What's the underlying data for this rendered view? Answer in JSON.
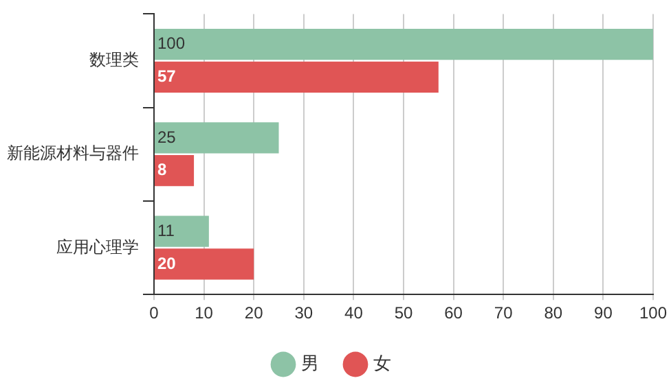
{
  "chart_data": {
    "type": "bar",
    "orientation": "horizontal",
    "categories": [
      "数理类",
      "新能源材料与器件",
      "应用心理学"
    ],
    "series": [
      {
        "name": "男",
        "color": "#8dc3a6",
        "values": [
          100,
          25,
          11
        ]
      },
      {
        "name": "女",
        "color": "#e05555",
        "values": [
          57,
          8,
          20
        ]
      }
    ],
    "xlim": [
      0,
      100
    ],
    "xticks": [
      0,
      10,
      20,
      30,
      40,
      50,
      60,
      70,
      80,
      90,
      100
    ],
    "grid": "x",
    "legend": "bottom",
    "data_labels": true
  }
}
